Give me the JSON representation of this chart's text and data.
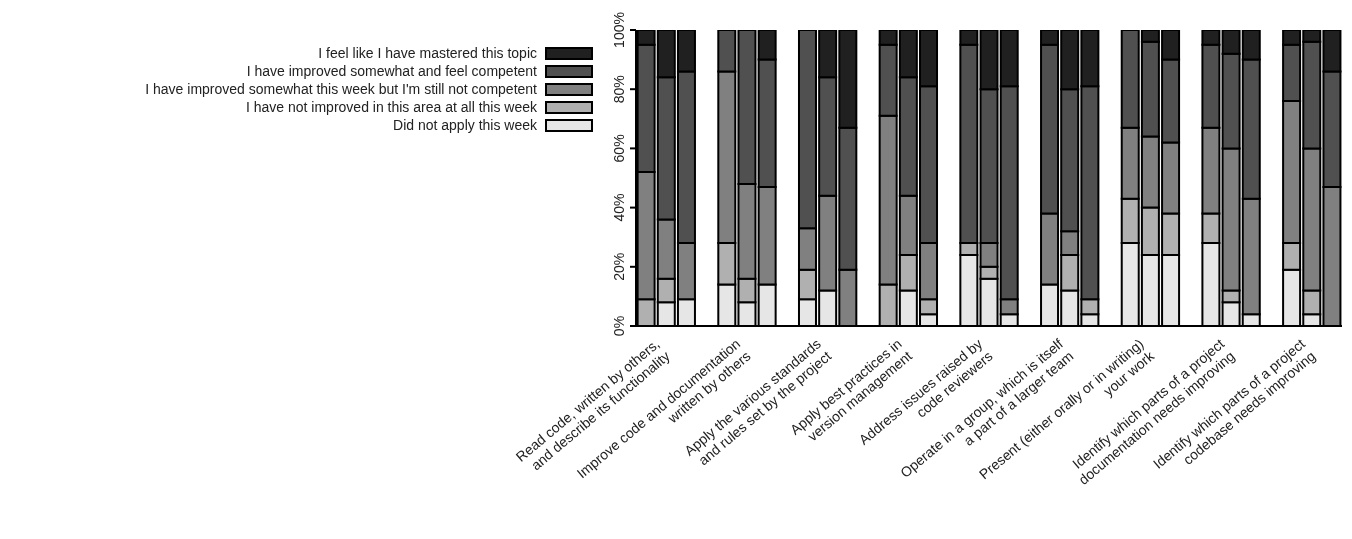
{
  "chart_data": {
    "type": "bar",
    "stacked": true,
    "categories": [
      null,
      "Read code, written by others,\nand describe its functionality",
      null,
      null,
      null,
      "Improve code and documentation\nwritten by others",
      null,
      null,
      null,
      "Apply the various standards\nand rules set by the project",
      null,
      null,
      null,
      "Apply best practices in\nversion management",
      null,
      null,
      null,
      "Address issues raised by\ncode reviewers",
      null,
      null,
      null,
      "Operate in a group, which is itself\na part of a larger team",
      null,
      null,
      null,
      "Present (either orally or in writing)\nyour work",
      null,
      null,
      null,
      "Identify which parts of a project\ndocumentation needs improving",
      null,
      null,
      null,
      "Identify which parts of a project\ncodebase needs improving",
      null
    ],
    "series": [
      {
        "name": "Did not apply this week",
        "color": "#e6e6e6",
        "values": [
          null,
          8,
          9,
          null,
          14,
          8,
          14,
          null,
          9,
          12,
          null,
          null,
          null,
          12,
          4,
          null,
          24,
          16,
          4,
          null,
          14,
          12,
          4,
          null,
          28,
          24,
          24,
          null,
          28,
          8,
          4,
          null,
          19,
          4,
          null
        ]
      },
      {
        "name": "I have not improved in this area at all this week",
        "color": "#b0b0b0",
        "values": [
          9,
          8,
          null,
          null,
          14,
          8,
          null,
          null,
          10,
          null,
          null,
          null,
          14,
          12,
          5,
          null,
          4,
          4,
          null,
          null,
          null,
          12,
          5,
          null,
          15,
          16,
          14,
          null,
          10,
          4,
          null,
          null,
          9,
          8,
          null
        ]
      },
      {
        "name": "I have improved somewhat this week but I'm still not competent",
        "color": "#808080",
        "values": [
          43,
          20,
          19,
          null,
          58,
          32,
          33,
          null,
          14,
          32,
          19,
          null,
          57,
          20,
          19,
          null,
          null,
          8,
          5,
          null,
          24,
          8,
          null,
          null,
          24,
          24,
          24,
          null,
          29,
          48,
          39,
          null,
          48,
          48,
          47
        ]
      },
      {
        "name": "I have improved somewhat and feel competent",
        "color": "#505050",
        "values": [
          43,
          48,
          58,
          null,
          14,
          52,
          43,
          null,
          67,
          40,
          48,
          null,
          24,
          40,
          53,
          null,
          67,
          52,
          72,
          null,
          57,
          48,
          72,
          null,
          33,
          32,
          28,
          null,
          28,
          32,
          47,
          null,
          19,
          36,
          39
        ]
      },
      {
        "name": "I feel like I have mastered this topic",
        "color": "#202020",
        "values": [
          5,
          16,
          14,
          null,
          null,
          null,
          10,
          null,
          null,
          16,
          33,
          null,
          5,
          16,
          19,
          null,
          5,
          20,
          19,
          null,
          5,
          20,
          19,
          null,
          null,
          4,
          10,
          null,
          5,
          8,
          10,
          null,
          5,
          4,
          14
        ]
      }
    ],
    "ylim": [
      0,
      100
    ],
    "yticks": [
      {
        "value": 0,
        "label": "0%"
      },
      {
        "value": 20,
        "label": "20%"
      },
      {
        "value": 40,
        "label": "40%"
      },
      {
        "value": 60,
        "label": "60%"
      },
      {
        "value": 80,
        "label": "80%"
      },
      {
        "value": 100,
        "label": "100%"
      }
    ],
    "legend": "top left"
  }
}
